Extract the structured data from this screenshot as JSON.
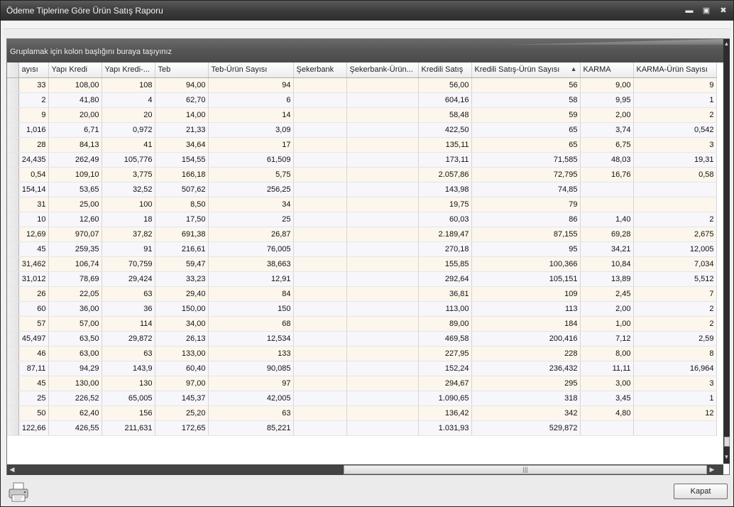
{
  "window": {
    "title": "Ödeme Tiplerine Göre Ürün Satış Raporu",
    "minimize_icon": "minimize-icon",
    "maximize_icon": "maximize-icon",
    "close_icon": "close-icon"
  },
  "grid": {
    "group_panel_text": "Gruplamak için kolon başlığını buraya taşıyınız",
    "columns": [
      "ayısı",
      "Yapı Kredi",
      "Yapı Kredi-...",
      "Teb",
      "Teb-Ürün Sayısı",
      "Şekerbank",
      "Şekerbank-Ürün...",
      "Kredili Satış",
      "Kredili Satış-Ürün Sayısı",
      "KARMA",
      "KARMA-Ürün Sayısı"
    ],
    "sorted_column_icon": "sort-ascending-icon",
    "rows": [
      [
        "33",
        "108,00",
        "108",
        "94,00",
        "94",
        "",
        "",
        "56,00",
        "56",
        "9,00",
        "9"
      ],
      [
        "2",
        "41,80",
        "4",
        "62,70",
        "6",
        "",
        "",
        "604,16",
        "58",
        "9,95",
        "1"
      ],
      [
        "9",
        "20,00",
        "20",
        "14,00",
        "14",
        "",
        "",
        "58,48",
        "59",
        "2,00",
        "2"
      ],
      [
        "1,016",
        "6,71",
        "0,972",
        "21,33",
        "3,09",
        "",
        "",
        "422,50",
        "65",
        "3,74",
        "0,542"
      ],
      [
        "28",
        "84,13",
        "41",
        "34,64",
        "17",
        "",
        "",
        "135,11",
        "65",
        "6,75",
        "3"
      ],
      [
        "24,435",
        "262,49",
        "105,776",
        "154,55",
        "61,509",
        "",
        "",
        "173,11",
        "71,585",
        "48,03",
        "19,31"
      ],
      [
        "0,54",
        "109,10",
        "3,775",
        "166,18",
        "5,75",
        "",
        "",
        "2.057,86",
        "72,795",
        "16,76",
        "0,58"
      ],
      [
        "154,14",
        "53,65",
        "32,52",
        "507,62",
        "256,25",
        "",
        "",
        "143,98",
        "74,85",
        "",
        ""
      ],
      [
        "31",
        "25,00",
        "100",
        "8,50",
        "34",
        "",
        "",
        "19,75",
        "79",
        "",
        ""
      ],
      [
        "10",
        "12,60",
        "18",
        "17,50",
        "25",
        "",
        "",
        "60,03",
        "86",
        "1,40",
        "2"
      ],
      [
        "12,69",
        "970,07",
        "37,82",
        "691,38",
        "26,87",
        "",
        "",
        "2.189,47",
        "87,155",
        "69,28",
        "2,675"
      ],
      [
        "45",
        "259,35",
        "91",
        "216,61",
        "76,005",
        "",
        "",
        "270,18",
        "95",
        "34,21",
        "12,005"
      ],
      [
        "31,462",
        "106,74",
        "70,759",
        "59,47",
        "38,663",
        "",
        "",
        "155,85",
        "100,366",
        "10,84",
        "7,034"
      ],
      [
        "31,012",
        "78,69",
        "29,424",
        "33,23",
        "12,91",
        "",
        "",
        "292,64",
        "105,151",
        "13,89",
        "5,512"
      ],
      [
        "26",
        "22,05",
        "63",
        "29,40",
        "84",
        "",
        "",
        "36,81",
        "109",
        "2,45",
        "7"
      ],
      [
        "60",
        "36,00",
        "36",
        "150,00",
        "150",
        "",
        "",
        "113,00",
        "113",
        "2,00",
        "2"
      ],
      [
        "57",
        "57,00",
        "114",
        "34,00",
        "68",
        "",
        "",
        "89,00",
        "184",
        "1,00",
        "2"
      ],
      [
        "45,497",
        "63,50",
        "29,872",
        "26,13",
        "12,534",
        "",
        "",
        "469,58",
        "200,416",
        "7,12",
        "2,59"
      ],
      [
        "46",
        "63,00",
        "63",
        "133,00",
        "133",
        "",
        "",
        "227,95",
        "228",
        "8,00",
        "8"
      ],
      [
        "87,11",
        "94,29",
        "143,9",
        "60,40",
        "90,085",
        "",
        "",
        "152,24",
        "236,432",
        "11,11",
        "16,964"
      ],
      [
        "45",
        "130,00",
        "130",
        "97,00",
        "97",
        "",
        "",
        "294,67",
        "295",
        "3,00",
        "3"
      ],
      [
        "25",
        "226,52",
        "65,005",
        "145,37",
        "42,005",
        "",
        "",
        "1.090,65",
        "318",
        "3,45",
        "1"
      ],
      [
        "50",
        "62,40",
        "156",
        "25,20",
        "63",
        "",
        "",
        "136,42",
        "342",
        "4,80",
        "12"
      ],
      [
        "122,66",
        "426,55",
        "211,631",
        "172,65",
        "85,221",
        "",
        "",
        "1.031,93",
        "529,872",
        "",
        ""
      ]
    ]
  },
  "footer": {
    "print_icon": "printer-icon",
    "close_button_label": "Kapat"
  }
}
